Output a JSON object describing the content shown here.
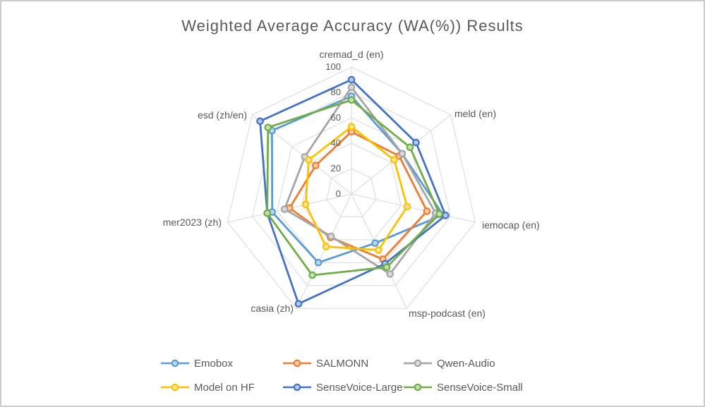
{
  "chart_data": {
    "type": "radar",
    "title": "Weighted Average Accuracy (WA(%)) Results",
    "axis_min": 0,
    "axis_max": 100,
    "ticks": [
      100,
      80,
      60,
      40,
      20,
      0
    ],
    "grid_color": "#d9d9d9",
    "text_color": "#595959",
    "legend_position": "bottom",
    "axes": [
      {
        "label": "cremad_d (en)"
      },
      {
        "label": "meld (en)"
      },
      {
        "label": "iemocap (en)"
      },
      {
        "label": "msp-podcast (en)"
      },
      {
        "label": "casia (zh)"
      },
      {
        "label": "mer2023 (zh)"
      },
      {
        "label": "esd (zh/en)"
      }
    ],
    "series": [
      {
        "name": "Emobox",
        "color": "#5B9BD5",
        "marker_fill": "#BDD7EE",
        "values": [
          77,
          51,
          74,
          43,
          60,
          64,
          80
        ]
      },
      {
        "name": "SALMONN",
        "color": "#ED7D31",
        "marker_fill": "#F8CBAD",
        "values": [
          49,
          48,
          61,
          57,
          38,
          50,
          36
        ]
      },
      {
        "name": "Qwen-Audio",
        "color": "#A5A5A5",
        "marker_fill": "#DBDBDB",
        "values": [
          84,
          51,
          68,
          70,
          37,
          54,
          47
        ]
      },
      {
        "name": "Model on HF",
        "color": "#FFC000",
        "marker_fill": "#FFE699",
        "values": [
          53,
          43,
          45,
          49,
          46,
          37,
          43
        ]
      },
      {
        "name": "SenseVoice-Large",
        "color": "#4472C4",
        "marker_fill": "#B4C7E7",
        "values": [
          90,
          65,
          76,
          61,
          96,
          68,
          92
        ]
      },
      {
        "name": "SenseVoice-Small",
        "color": "#70AD47",
        "marker_fill": "#C6E0B4",
        "values": [
          74,
          59,
          71,
          64,
          71,
          68,
          84
        ]
      }
    ]
  }
}
